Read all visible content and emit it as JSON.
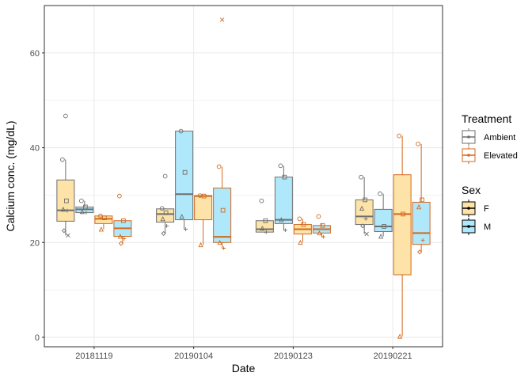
{
  "colors": {
    "ambient": "#6e6e6e",
    "elevated": "#d2691e",
    "female_fill": "#fde3a7",
    "male_fill": "#b0e8fb",
    "grid": "#ebebeb",
    "panel_border": "#333333"
  },
  "chart_data": {
    "type": "boxplot",
    "xlabel": "Date",
    "ylabel": "Calcium conc. (mg/dL)",
    "ylim": [
      -2,
      70
    ],
    "yticks": [
      0,
      20,
      40,
      60
    ],
    "categories": [
      "20181119",
      "20190104",
      "20190123",
      "20190221"
    ],
    "grid": true,
    "legend_position": "right",
    "legends": [
      {
        "title": "Treatment",
        "entries": [
          {
            "label": "Ambient",
            "key": "ambient"
          },
          {
            "label": "Elevated",
            "key": "elevated"
          }
        ]
      },
      {
        "title": "Sex",
        "entries": [
          {
            "label": "F",
            "key": "female_fill"
          },
          {
            "label": "M",
            "key": "male_fill"
          }
        ]
      }
    ],
    "boxes": [
      {
        "date": "20181119",
        "treatment": "ambient",
        "sex": "F",
        "whisker_low": 21.5,
        "q1": 24.5,
        "median": 26.8,
        "q3": 33.2,
        "whisker_high": 37.5,
        "points": [
          37.5,
          28.8,
          27.0,
          26.7,
          22.5,
          21.5
        ],
        "outliers": [
          46.7
        ]
      },
      {
        "date": "20181119",
        "treatment": "ambient",
        "sex": "M",
        "whisker_low": 26.3,
        "q1": 26.3,
        "median": 27.0,
        "q3": 27.5,
        "whisker_high": 28.8,
        "points": [
          28.8,
          27.5,
          26.5,
          26.3
        ]
      },
      {
        "date": "20181119",
        "treatment": "elevated",
        "sex": "F",
        "whisker_low": 22.8,
        "q1": 24.0,
        "median": 25.0,
        "q3": 25.6,
        "whisker_high": 25.6,
        "points": [
          25.6,
          25.2,
          22.8
        ]
      },
      {
        "date": "20181119",
        "treatment": "elevated",
        "sex": "M",
        "whisker_low": 19.8,
        "q1": 21.3,
        "median": 23.0,
        "q3": 24.6,
        "whisker_high": 24.6,
        "points": [
          29.8,
          24.6,
          21.3,
          20.8,
          19.8
        ]
      },
      {
        "date": "20190104",
        "treatment": "ambient",
        "sex": "F",
        "whisker_low": 21.9,
        "q1": 24.3,
        "median": 26.0,
        "q3": 27.1,
        "whisker_high": 27.2,
        "points": [
          27.2,
          26.3,
          25.0,
          23.5,
          21.9
        ],
        "outliers": [
          34.0
        ]
      },
      {
        "date": "20190104",
        "treatment": "ambient",
        "sex": "M",
        "whisker_low": 22.8,
        "q1": 24.8,
        "median": 30.2,
        "q3": 43.5,
        "whisker_high": 43.5,
        "points": [
          43.5,
          34.8,
          25.5,
          22.8
        ]
      },
      {
        "date": "20190104",
        "treatment": "elevated",
        "sex": "F",
        "whisker_low": 19.5,
        "q1": 24.8,
        "median": 29.8,
        "q3": 29.9,
        "whisker_high": 29.9,
        "points": [
          29.9,
          29.8,
          19.5
        ]
      },
      {
        "date": "20190104",
        "treatment": "elevated",
        "sex": "M",
        "whisker_low": 18.8,
        "q1": 20.0,
        "median": 21.2,
        "q3": 31.5,
        "whisker_high": 36.0,
        "points": [
          36.0,
          26.8,
          20.0,
          18.8
        ],
        "outliers": [
          67.0
        ]
      },
      {
        "date": "20190123",
        "treatment": "ambient",
        "sex": "F",
        "whisker_low": 22.0,
        "q1": 22.2,
        "median": 22.8,
        "q3": 24.6,
        "whisker_high": 24.6,
        "points": [
          28.8,
          24.6,
          23.0,
          22.2
        ]
      },
      {
        "date": "20190123",
        "treatment": "ambient",
        "sex": "M",
        "whisker_low": 22.6,
        "q1": 24.0,
        "median": 24.8,
        "q3": 33.8,
        "whisker_high": 36.2,
        "points": [
          36.2,
          33.8,
          24.8,
          22.6
        ]
      },
      {
        "date": "20190123",
        "treatment": "elevated",
        "sex": "F",
        "whisker_low": 20.0,
        "q1": 21.8,
        "median": 22.8,
        "q3": 23.8,
        "whisker_high": 25.0,
        "points": [
          25.0,
          23.8,
          20.0
        ]
      },
      {
        "date": "20190123",
        "treatment": "elevated",
        "sex": "M",
        "whisker_low": 21.2,
        "q1": 22.0,
        "median": 22.8,
        "q3": 23.6,
        "whisker_high": 24.0,
        "points": [
          25.5,
          23.6,
          22.0,
          21.2
        ]
      },
      {
        "date": "20190221",
        "treatment": "ambient",
        "sex": "F",
        "whisker_low": 21.8,
        "q1": 23.8,
        "median": 25.5,
        "q3": 29.0,
        "whisker_high": 33.8,
        "points": [
          33.8,
          29.0,
          27.2,
          25.0,
          23.5,
          21.8
        ]
      },
      {
        "date": "20190221",
        "treatment": "ambient",
        "sex": "M",
        "whisker_low": 21.3,
        "q1": 22.3,
        "median": 23.4,
        "q3": 27.0,
        "whisker_high": 30.3,
        "points": [
          30.3,
          23.4,
          21.3
        ]
      },
      {
        "date": "20190221",
        "treatment": "elevated",
        "sex": "F",
        "whisker_low": 0.2,
        "q1": 13.2,
        "median": 26.0,
        "q3": 34.3,
        "whisker_high": 42.5,
        "points": [
          42.5,
          26.0,
          0.2
        ]
      },
      {
        "date": "20190221",
        "treatment": "elevated",
        "sex": "M",
        "whisker_low": 18.0,
        "q1": 19.6,
        "median": 22.0,
        "q3": 28.5,
        "whisker_high": 40.8,
        "points": [
          40.8,
          29.0,
          27.5,
          20.5,
          18.0
        ]
      }
    ]
  }
}
